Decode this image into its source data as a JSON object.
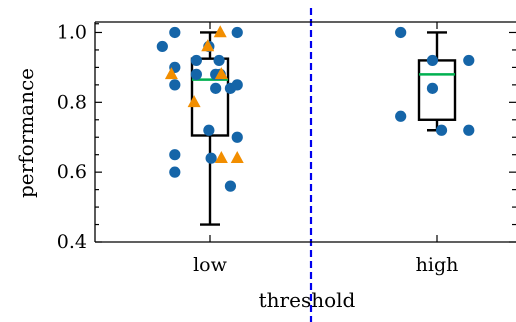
{
  "chart_data": {
    "type": "scatter",
    "xlabel": "threshold",
    "ylabel": "performance",
    "categories": [
      "low",
      "high"
    ],
    "ylim": [
      0.4,
      1.03
    ],
    "yticks": [
      0.4,
      0.6,
      0.8,
      1.0
    ],
    "ytick_labels": [
      "0.4",
      "0.6",
      "0.8",
      "1.0"
    ],
    "grid": false,
    "divider": {
      "position": "between categories",
      "style": "dashed",
      "color": "#0000ee"
    },
    "colors": {
      "circle": "#1565a8",
      "triangle": "#f28e00",
      "median": "#00b050",
      "box": "#000000"
    },
    "boxplots": [
      {
        "category": "low",
        "whisker_low": 0.45,
        "q1": 0.705,
        "median": 0.865,
        "q3": 0.925,
        "whisker_high": 1.0
      },
      {
        "category": "high",
        "whisker_low": 0.72,
        "q1": 0.75,
        "median": 0.88,
        "q3": 0.92,
        "whisker_high": 1.0
      }
    ],
    "series": [
      {
        "marker": "circle",
        "points": [
          {
            "category": "low",
            "jitter": -0.42,
            "y": 0.96
          },
          {
            "category": "low",
            "jitter": -0.31,
            "y": 1.0
          },
          {
            "category": "low",
            "jitter": -0.31,
            "y": 0.9
          },
          {
            "category": "low",
            "jitter": -0.31,
            "y": 0.85
          },
          {
            "category": "low",
            "jitter": -0.31,
            "y": 0.65
          },
          {
            "category": "low",
            "jitter": -0.31,
            "y": 0.6
          },
          {
            "category": "low",
            "jitter": -0.12,
            "y": 0.92
          },
          {
            "category": "low",
            "jitter": -0.12,
            "y": 0.88
          },
          {
            "category": "low",
            "jitter": -0.01,
            "y": 0.96
          },
          {
            "category": "low",
            "jitter": -0.01,
            "y": 0.72
          },
          {
            "category": "low",
            "jitter": 0.01,
            "y": 0.64
          },
          {
            "category": "low",
            "jitter": 0.05,
            "y": 0.88
          },
          {
            "category": "low",
            "jitter": 0.05,
            "y": 0.84
          },
          {
            "category": "low",
            "jitter": 0.08,
            "y": 0.92
          },
          {
            "category": "low",
            "jitter": 0.09,
            "y": 0.88
          },
          {
            "category": "low",
            "jitter": 0.18,
            "y": 0.84
          },
          {
            "category": "low",
            "jitter": 0.18,
            "y": 0.56
          },
          {
            "category": "low",
            "jitter": 0.24,
            "y": 1.0
          },
          {
            "category": "low",
            "jitter": 0.24,
            "y": 0.85
          },
          {
            "category": "low",
            "jitter": 0.24,
            "y": 0.7
          },
          {
            "category": "high",
            "jitter": -0.32,
            "y": 1.0
          },
          {
            "category": "high",
            "jitter": -0.32,
            "y": 0.76
          },
          {
            "category": "high",
            "jitter": -0.04,
            "y": 0.92
          },
          {
            "category": "high",
            "jitter": -0.04,
            "y": 0.84
          },
          {
            "category": "high",
            "jitter": 0.04,
            "y": 0.72
          },
          {
            "category": "high",
            "jitter": 0.28,
            "y": 0.92
          },
          {
            "category": "high",
            "jitter": 0.28,
            "y": 0.72
          }
        ]
      },
      {
        "marker": "triangle",
        "points": [
          {
            "category": "low",
            "jitter": -0.34,
            "y": 0.88
          },
          {
            "category": "low",
            "jitter": -0.14,
            "y": 0.8
          },
          {
            "category": "low",
            "jitter": -0.02,
            "y": 0.96
          },
          {
            "category": "low",
            "jitter": 0.09,
            "y": 1.0
          },
          {
            "category": "low",
            "jitter": 0.1,
            "y": 0.88
          },
          {
            "category": "low",
            "jitter": 0.1,
            "y": 0.64
          },
          {
            "category": "low",
            "jitter": 0.24,
            "y": 0.64
          }
        ]
      }
    ]
  }
}
